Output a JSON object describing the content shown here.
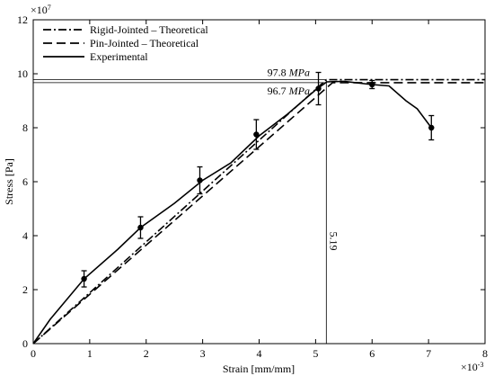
{
  "chart_data": {
    "type": "line",
    "x_label": "Strain [mm/mm]",
    "y_label": "Stress [Pa]",
    "x_multiplier": {
      "base": "×10",
      "exponent": "-3"
    },
    "y_multiplier": {
      "base": "×10",
      "exponent": "7"
    },
    "xlim": [
      0,
      8
    ],
    "xticks": [
      0,
      1,
      2,
      3,
      4,
      5,
      6,
      7,
      8
    ],
    "ylim": [
      0,
      12
    ],
    "yticks": [
      0,
      2,
      4,
      6,
      8,
      10,
      12
    ],
    "grid": false,
    "legend": "upper left",
    "series": [
      {
        "name": "Rigid-Jointed – Theoretical",
        "color": "#000000",
        "style": "dashdot",
        "x": [
          0,
          5.19,
          8
        ],
        "values": [
          0,
          9.78,
          9.78
        ]
      },
      {
        "name": "Pin-Jointed – Theoretical",
        "color": "#000000",
        "style": "dash",
        "x": [
          0,
          5.3,
          8
        ],
        "values": [
          0,
          9.67,
          9.67
        ]
      },
      {
        "name": "Experimental",
        "color": "#000000",
        "style": "solid",
        "x": [
          0,
          0.3,
          0.9,
          1.5,
          1.9,
          2.5,
          3.0,
          3.5,
          4.0,
          4.5,
          5.0,
          5.2,
          5.5,
          6.0,
          6.3,
          6.6,
          6.8,
          7.05
        ],
        "values": [
          0,
          0.9,
          2.4,
          3.5,
          4.3,
          5.2,
          6.05,
          6.7,
          7.7,
          8.5,
          9.4,
          9.7,
          9.72,
          9.6,
          9.55,
          9.0,
          8.7,
          8.0
        ],
        "markers": {
          "x": [
            0.9,
            1.9,
            2.95,
            3.95,
            5.05,
            6.0,
            7.05
          ],
          "values": [
            2.4,
            4.3,
            6.05,
            7.75,
            9.45,
            9.6,
            8.0
          ],
          "errors": [
            0.3,
            0.4,
            0.5,
            0.55,
            0.6,
            0.15,
            0.45
          ]
        }
      }
    ],
    "annotations": [
      {
        "text": "97.8",
        "unit": "MPa",
        "y": 9.78
      },
      {
        "text": "96.7",
        "unit": "MPa",
        "y": 9.67
      },
      {
        "text": "5.19",
        "x": 5.19
      }
    ]
  }
}
